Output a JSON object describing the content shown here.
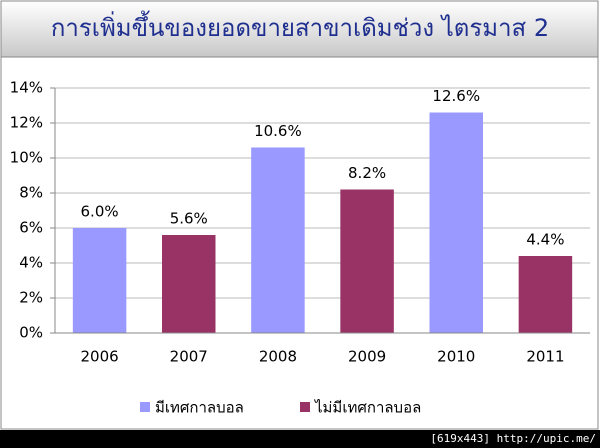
{
  "chart_data": {
    "type": "bar",
    "title": "การเพิ่มขึ้นของยอดขายสาขาเดิมช่วง ไตรมาส 2",
    "categories": [
      "2006",
      "2007",
      "2008",
      "2009",
      "2010",
      "2011"
    ],
    "series": [
      {
        "name": "มีเทศกาลบอล",
        "color": "#9999ff",
        "values": [
          6.0,
          null,
          10.6,
          null,
          12.6,
          null
        ],
        "value_labels": [
          "6.0%",
          null,
          "10.6%",
          null,
          "12.6%",
          null
        ]
      },
      {
        "name": "ไม่มีเทศกาลบอล",
        "color": "#993366",
        "values": [
          null,
          5.6,
          null,
          8.2,
          null,
          4.4
        ],
        "value_labels": [
          null,
          "5.6%",
          null,
          "8.2%",
          null,
          "4.4%"
        ]
      }
    ],
    "ylim": [
      0,
      14
    ],
    "yticks": [
      {
        "value": 0,
        "label": "0%"
      },
      {
        "value": 2,
        "label": "2%"
      },
      {
        "value": 4,
        "label": "4%"
      },
      {
        "value": 6,
        "label": "6%"
      },
      {
        "value": 8,
        "label": "8%"
      },
      {
        "value": 10,
        "label": "10%"
      },
      {
        "value": 12,
        "label": "12%"
      },
      {
        "value": 14,
        "label": "14%"
      }
    ],
    "grid": true,
    "legend": "bottom",
    "watermark": "[619x443] http://upic.me/"
  }
}
